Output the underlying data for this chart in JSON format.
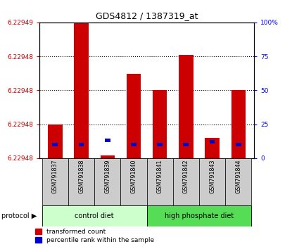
{
  "title": "GDS4812 / 1387319_at",
  "samples": [
    "GSM791837",
    "GSM791838",
    "GSM791839",
    "GSM791840",
    "GSM791841",
    "GSM791842",
    "GSM791843",
    "GSM791844"
  ],
  "red_heights_pct": [
    25,
    100,
    2,
    62,
    50,
    76,
    15,
    50
  ],
  "blue_pcts": [
    10,
    10,
    13,
    10,
    10,
    10,
    12,
    10
  ],
  "ytick_labels_left": [
    "6.22948",
    "6.22948",
    "6.22948",
    "6.22948",
    "6.22949"
  ],
  "ytick_pcts_left": [
    0,
    25,
    50,
    75,
    100
  ],
  "right_ytick_labels": [
    "0",
    "25",
    "50",
    "75",
    "100%"
  ],
  "right_ytick_pcts": [
    0,
    25,
    50,
    75,
    100
  ],
  "bar_width": 0.55,
  "red_color": "#cc0000",
  "blue_color": "#0000cc",
  "sample_bg_color": "#cccccc",
  "ctrl_color": "#ccffcc",
  "hp_color": "#55dd55",
  "grid_pcts": [
    25,
    50,
    75
  ]
}
